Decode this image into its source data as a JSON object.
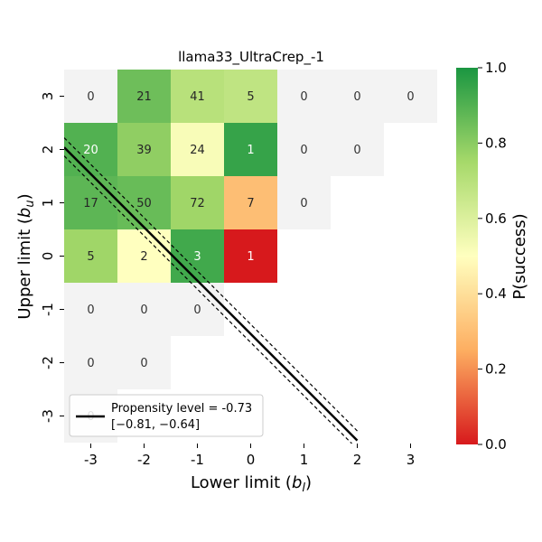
{
  "chart_data": {
    "type": "heatmap",
    "title": "llama33_UltraCrep_-1",
    "xlabel_main": "Lower limit (",
    "xlabel_var": "b",
    "xlabel_sub": "l",
    "xlabel_close": ")",
    "ylabel_main": "Upper limit (",
    "ylabel_var": "b",
    "ylabel_sub": "u",
    "ylabel_close": ")",
    "x_ticks": [
      "-3",
      "-2",
      "-1",
      "0",
      "1",
      "2",
      "3"
    ],
    "y_ticks": [
      "3",
      "2",
      "1",
      "0",
      "-1",
      "-2",
      "-3"
    ],
    "cells": [
      {
        "x": -3,
        "y": 3,
        "count": "0",
        "p": null
      },
      {
        "x": -2,
        "y": 3,
        "count": "21",
        "p": 0.85
      },
      {
        "x": -1,
        "y": 3,
        "count": "41",
        "p": 0.7
      },
      {
        "x": 0,
        "y": 3,
        "count": "5",
        "p": 0.68
      },
      {
        "x": 1,
        "y": 3,
        "count": "0",
        "p": null
      },
      {
        "x": 2,
        "y": 3,
        "count": "0",
        "p": null
      },
      {
        "x": 3,
        "y": 3,
        "count": "0",
        "p": null
      },
      {
        "x": -3,
        "y": 2,
        "count": "20",
        "p": 0.9
      },
      {
        "x": -2,
        "y": 2,
        "count": "39",
        "p": 0.79
      },
      {
        "x": -1,
        "y": 2,
        "count": "24",
        "p": 0.52
      },
      {
        "x": 0,
        "y": 2,
        "count": "1",
        "p": 0.95
      },
      {
        "x": 1,
        "y": 2,
        "count": "0",
        "p": null
      },
      {
        "x": 2,
        "y": 2,
        "count": "0",
        "p": null
      },
      {
        "x": -3,
        "y": 1,
        "count": "17",
        "p": 0.88
      },
      {
        "x": -2,
        "y": 1,
        "count": "50",
        "p": 0.86
      },
      {
        "x": -1,
        "y": 1,
        "count": "72",
        "p": 0.76
      },
      {
        "x": 0,
        "y": 1,
        "count": "7",
        "p": 0.3
      },
      {
        "x": 1,
        "y": 1,
        "count": "0",
        "p": null
      },
      {
        "x": -3,
        "y": 0,
        "count": "5",
        "p": 0.76
      },
      {
        "x": -2,
        "y": 0,
        "count": "2",
        "p": 0.5
      },
      {
        "x": -1,
        "y": 0,
        "count": "3",
        "p": 0.93
      },
      {
        "x": 0,
        "y": 0,
        "count": "1",
        "p": 0.0
      },
      {
        "x": -3,
        "y": -1,
        "count": "0",
        "p": null
      },
      {
        "x": -2,
        "y": -1,
        "count": "0",
        "p": null
      },
      {
        "x": -1,
        "y": -1,
        "count": "0",
        "p": null
      },
      {
        "x": -3,
        "y": -2,
        "count": "0",
        "p": null
      },
      {
        "x": -2,
        "y": -2,
        "count": "0",
        "p": null
      },
      {
        "x": -3,
        "y": -3,
        "count": "0",
        "p": null
      }
    ],
    "propensity_line": {
      "level": -0.73,
      "ci": [
        -0.81,
        -0.64
      ]
    },
    "legend": {
      "line1": "Propensity level = -0.73",
      "line2": "[−0.81, −0.64]",
      "placement": "lower-left"
    },
    "colorbar": {
      "label": "P(success)",
      "range": [
        0.0,
        1.0
      ],
      "ticks": [
        "0.0",
        "0.2",
        "0.4",
        "0.6",
        "0.8",
        "1.0"
      ],
      "colors": [
        "#d7191c",
        "#fdae61",
        "#ffffbf",
        "#a6d96a",
        "#1a9641"
      ]
    },
    "empty_color": "#f3f3f3"
  }
}
